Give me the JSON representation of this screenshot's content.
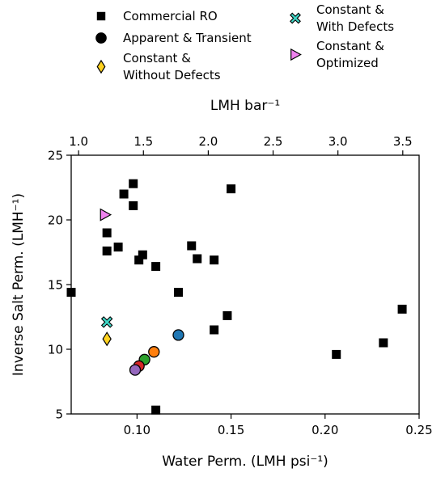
{
  "chart_data": {
    "type": "scatter",
    "xlabel": "Water Perm. (LMH psi⁻¹)",
    "ylabel": "Inverse Salt Perm. (LMH⁻¹)",
    "x2label": "LMH bar⁻¹",
    "xlim": [
      0.065,
      0.25
    ],
    "ylim": [
      5,
      25
    ],
    "x2lim": [
      0.943,
      3.626
    ],
    "xticks": [
      0.1,
      0.15,
      0.2,
      0.25
    ],
    "xtick_labels": [
      "0.10",
      "0.15",
      "0.20",
      "0.25"
    ],
    "yticks": [
      5,
      10,
      15,
      20,
      25
    ],
    "ytick_labels": [
      "5",
      "10",
      "15",
      "20",
      "25"
    ],
    "x2ticks": [
      1.0,
      1.5,
      2.0,
      2.5,
      3.0,
      3.5
    ],
    "x2tick_labels": [
      "1.0",
      "1.5",
      "2.0",
      "2.5",
      "3.0",
      "3.5"
    ],
    "grid": false,
    "legend_position": "top",
    "series": [
      {
        "name": "Commercial RO",
        "marker": "square",
        "color": "#000000",
        "points": [
          [
            0.065,
            14.4
          ],
          [
            0.084,
            19.0
          ],
          [
            0.084,
            17.6
          ],
          [
            0.09,
            17.9
          ],
          [
            0.093,
            22.0
          ],
          [
            0.098,
            22.8
          ],
          [
            0.098,
            21.1
          ],
          [
            0.101,
            16.9
          ],
          [
            0.103,
            17.3
          ],
          [
            0.11,
            16.4
          ],
          [
            0.11,
            5.3
          ],
          [
            0.122,
            14.4
          ],
          [
            0.129,
            18.0
          ],
          [
            0.132,
            17.0
          ],
          [
            0.141,
            16.9
          ],
          [
            0.141,
            11.5
          ],
          [
            0.148,
            12.6
          ],
          [
            0.15,
            22.4
          ],
          [
            0.206,
            9.6
          ],
          [
            0.231,
            10.5
          ],
          [
            0.241,
            13.1
          ]
        ]
      },
      {
        "name": "Apparent & Transient",
        "marker": "circle",
        "color": "#000000",
        "points": [
          {
            "x": 0.122,
            "y": 11.1,
            "color": "#1f77b4"
          },
          {
            "x": 0.109,
            "y": 9.8,
            "color": "#ff7f0e"
          },
          {
            "x": 0.104,
            "y": 9.2,
            "color": "#2ca02c"
          },
          {
            "x": 0.101,
            "y": 8.7,
            "color": "#d62728"
          },
          {
            "x": 0.099,
            "y": 8.4,
            "color": "#9467bd"
          }
        ]
      },
      {
        "name": "Constant & Without Defects",
        "marker": "diamond",
        "color": "#ffd21f",
        "points": [
          [
            0.084,
            10.8
          ]
        ]
      },
      {
        "name": "Constant & With Defects",
        "marker": "x",
        "color": "#3fd6c6",
        "points": [
          [
            0.084,
            12.1
          ]
        ]
      },
      {
        "name": "Constant & Optimized",
        "marker": "triangle-right",
        "color": "#ee82ee",
        "points": [
          [
            0.083,
            20.4
          ]
        ]
      }
    ],
    "legend": [
      {
        "label_lines": [
          "Commercial RO"
        ],
        "marker": "square",
        "color": "#000000"
      },
      {
        "label_lines": [
          "Apparent & Transient"
        ],
        "marker": "circle",
        "color": "#000000"
      },
      {
        "label_lines": [
          "Constant &",
          "Without Defects"
        ],
        "marker": "diamond",
        "color": "#ffd21f"
      },
      {
        "label_lines": [
          "Constant &",
          "With Defects"
        ],
        "marker": "x",
        "color": "#3fd6c6"
      },
      {
        "label_lines": [
          "Constant &",
          "Optimized"
        ],
        "marker": "triangle-right",
        "color": "#ee82ee"
      }
    ]
  }
}
